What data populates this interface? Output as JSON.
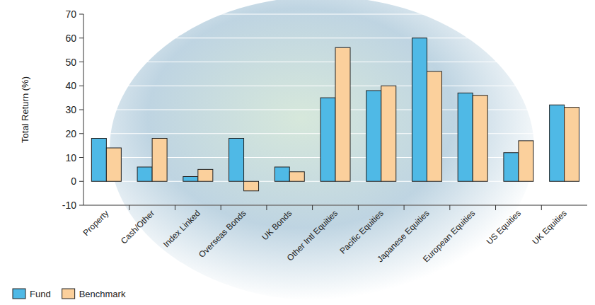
{
  "chart_data": {
    "type": "bar",
    "y_label": "Total Return (%)",
    "categories": [
      "Property",
      "Cash/Other",
      "Index Linked",
      "Overseas Bonds",
      "UK Bonds",
      "Other Intl Equities",
      "Pacific Equities",
      "Japanese Equities",
      "European Equities",
      "US Equities",
      "UK Equities"
    ],
    "series": [
      {
        "name": "Fund",
        "color": "#4fb9e6",
        "values": [
          18,
          6,
          2,
          18,
          6,
          35,
          38,
          60,
          37,
          12,
          32
        ]
      },
      {
        "name": "Benchmark",
        "color": "#fbd09c",
        "values": [
          14,
          18,
          5,
          -4,
          4,
          56,
          40,
          46,
          36,
          17,
          31
        ]
      }
    ],
    "ylim": [
      -10,
      70
    ],
    "yticks": [
      -10,
      0,
      10,
      20,
      30,
      40,
      50,
      60,
      70
    ],
    "grid": true,
    "legend": "bottom-left"
  }
}
